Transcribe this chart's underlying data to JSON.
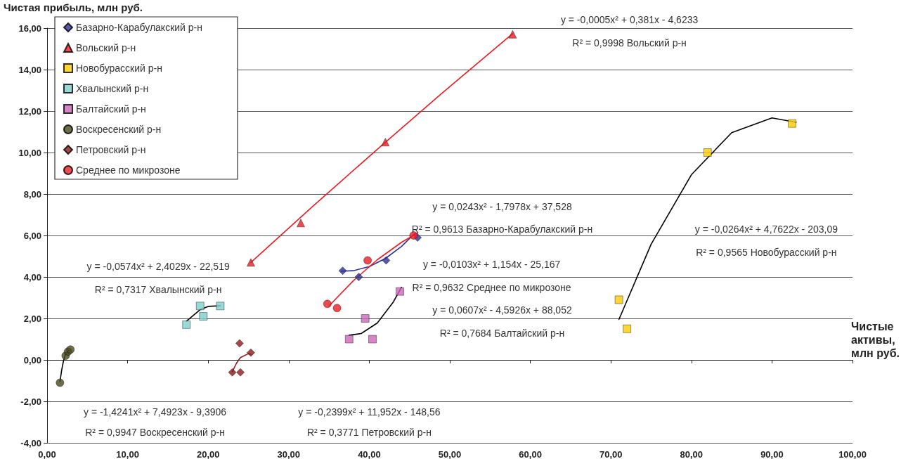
{
  "chart_data": {
    "type": "scatter",
    "ylabel": "Чистая прибыль, млн руб.",
    "xlabel": "Чистые активы, млн руб.",
    "xlim": [
      0,
      100
    ],
    "xticks": [
      {
        "value": 0,
        "label": "0,00"
      },
      {
        "value": 10,
        "label": "10,00"
      },
      {
        "value": 20,
        "label": "20,00"
      },
      {
        "value": 30,
        "label": "30,00"
      },
      {
        "value": 40,
        "label": "40,00"
      },
      {
        "value": 50,
        "label": "50,00"
      },
      {
        "value": 60,
        "label": "60,00"
      },
      {
        "value": 70,
        "label": "70,00"
      },
      {
        "value": 80,
        "label": "80,00"
      },
      {
        "value": 90,
        "label": "90,00"
      },
      {
        "value": 100,
        "label": "100,00"
      }
    ],
    "ylim": [
      -4,
      16
    ],
    "yticks": [
      {
        "value": -4,
        "label": "-4,00"
      },
      {
        "value": -2,
        "label": "-2,00"
      },
      {
        "value": 0,
        "label": "0,00"
      },
      {
        "value": 2,
        "label": "2,00"
      },
      {
        "value": 4,
        "label": "4,00"
      },
      {
        "value": 6,
        "label": "6,00"
      },
      {
        "value": 8,
        "label": "8,00"
      },
      {
        "value": 10,
        "label": "10,00"
      },
      {
        "value": 12,
        "label": "12,00"
      },
      {
        "value": 14,
        "label": "14,00"
      },
      {
        "value": 16,
        "label": "16,00"
      }
    ],
    "grid": "y",
    "legend": "top left",
    "series": [
      {
        "name": "Базарно-Карабулакский р-н",
        "color": "#2e3192",
        "marker": "diamond",
        "x": [
          36.7,
          38.7,
          42.1,
          46.0
        ],
        "values": [
          4.3,
          4.0,
          4.8,
          5.9
        ]
      },
      {
        "name": "Вольский р-н",
        "color": "#ed1c24",
        "marker": "triangle",
        "x": [
          25.3,
          31.5,
          42.0,
          57.8
        ],
        "values": [
          4.7,
          6.6,
          10.5,
          15.7
        ]
      },
      {
        "name": "Новобурасский р-н",
        "color": "#ffcc00",
        "marker": "square",
        "x": [
          71.0,
          72.0,
          82.0,
          92.5
        ],
        "values": [
          2.9,
          1.5,
          10.0,
          11.4
        ]
      },
      {
        "name": "Хвалынский р-н",
        "color": "#7fcfca",
        "marker": "square",
        "x": [
          17.3,
          19.0,
          19.4,
          21.5
        ],
        "values": [
          1.7,
          2.6,
          2.1,
          2.6
        ]
      },
      {
        "name": "Балтайский р-н",
        "color": "#cc66bb",
        "marker": "square",
        "x": [
          37.5,
          39.5,
          40.4,
          43.8
        ],
        "values": [
          1.0,
          2.0,
          1.0,
          3.3
        ]
      },
      {
        "name": "Воскресенский р-н",
        "color": "#4b4a1e",
        "marker": "circle",
        "x": [
          1.6,
          2.3,
          2.6,
          2.9
        ],
        "values": [
          -1.1,
          0.2,
          0.4,
          0.5
        ]
      },
      {
        "name": "Петровский р-н",
        "color": "#8b1a1a",
        "marker": "diamond",
        "x": [
          23.0,
          23.9,
          24.0,
          25.3
        ],
        "values": [
          -0.6,
          0.8,
          -0.6,
          0.35
        ]
      },
      {
        "name": "Среднее по микрозоне",
        "color": "#ed1c24",
        "marker": "circle",
        "x": [
          34.8,
          36.0,
          39.8,
          45.5
        ],
        "values": [
          2.7,
          2.5,
          4.8,
          6.0
        ]
      },
      {
        "type": "line",
        "color": "#ed1c24",
        "marker": "none",
        "x": [
          25.3,
          33,
          41,
          49,
          57.8
        ],
        "values": [
          4.7,
          7.41,
          10.16,
          12.85,
          15.73
        ]
      },
      {
        "type": "line",
        "color": "#2e3192",
        "marker": "none",
        "x": [
          36.5,
          38,
          40,
          42,
          44,
          45.7
        ],
        "values": [
          4.28,
          4.3,
          4.5,
          4.89,
          5.47,
          6.12
        ]
      },
      {
        "type": "line",
        "color": "#ed1c24",
        "marker": "none",
        "x": [
          35,
          38,
          41,
          44,
          46
        ],
        "values": [
          2.6,
          3.81,
          4.83,
          5.67,
          6.12
        ]
      },
      {
        "type": "line",
        "color": "#000000",
        "marker": "none",
        "x": [
          71,
          75,
          80,
          85,
          90,
          93
        ],
        "values": [
          1.95,
          5.58,
          8.93,
          10.96,
          11.67,
          11.46
        ]
      },
      {
        "type": "line",
        "color": "#000000",
        "marker": "none",
        "x": [
          17.3,
          19,
          20,
          21.5
        ],
        "values": [
          1.87,
          2.42,
          2.58,
          2.61
        ]
      },
      {
        "type": "line",
        "color": "#000000",
        "marker": "none",
        "x": [
          37.5,
          39,
          41,
          43,
          44
        ],
        "values": [
          1.19,
          1.27,
          1.78,
          2.8,
          3.5
        ]
      },
      {
        "type": "line",
        "color": "#000000",
        "marker": "none",
        "x": [
          1.6,
          1.8,
          2.0,
          2.3,
          2.7
        ],
        "values": [
          -1.05,
          -0.52,
          -0.11,
          0.31,
          0.46
        ]
      },
      {
        "type": "line",
        "color": "#8b1a1a",
        "marker": "none",
        "x": [
          23,
          23.5,
          24,
          25,
          25.3
        ],
        "values": [
          -0.57,
          -0.17,
          0.11,
          0.3,
          0.27
        ]
      }
    ],
    "annotations": [
      "y = -0,0005x² + 0,381x - 4,6233",
      "R² = 0,9998 Вольский р-н",
      "y = 0,0243x² - 1,7978x + 37,528",
      "R² = 0,9613 Базарно-Карабулакский р-н",
      "y = -0,0103x² + 1,154x - 25,167",
      "R² = 0,9632 Среднее по микрозоне",
      "y = -0,0264x² + 4,7622x - 203,09",
      "R² = 0,9565 Новобурасский р-н",
      "y = -0,0574x² + 2,4029x - 22,519",
      "R² = 0,7317 Хвалынский р-н",
      "y = 0,0607x² - 4,5926x + 88,052",
      "R² = 0,7684 Балтайский р-н",
      "y = -1,4241x² + 7,4923x - 9,3906",
      "R² = 0,9947 Воскресенский р-н",
      "y = -0,2399x² + 11,952x - 148,56",
      "R² = 0,3771 Петровский р-н"
    ]
  }
}
